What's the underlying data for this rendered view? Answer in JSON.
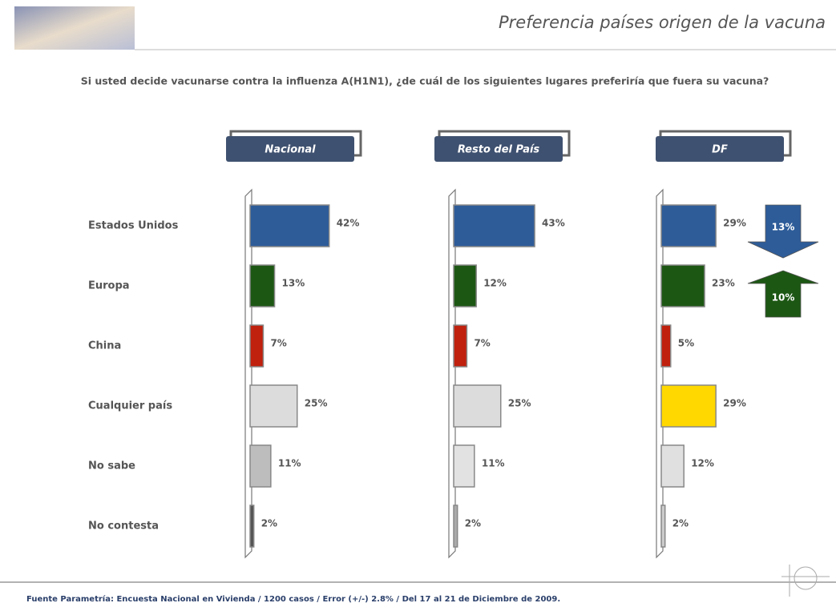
{
  "title": "Preferencia países origen de la vacuna",
  "question": "Si usted decide vacunarse contra la influenza A(H1N1), ¿de cuál de los siguientes lugares preferiría que fuera su vacuna?",
  "footer": "Fuente Parametría: Encuesta Nacional en Vivienda / 1200 casos / Error (+/-) 2.8% / Del 17 al 21 de Diciembre de 2009.",
  "chart_data": [
    {
      "type": "bar",
      "title": "Nacional",
      "categories": [
        "Estados Unidos",
        "Europa",
        "China",
        "Cualquier país",
        "No sabe",
        "No contesta"
      ],
      "values": [
        42,
        13,
        7,
        25,
        11,
        2
      ],
      "value_labels": [
        "42%",
        "13%",
        "7%",
        "25%",
        "11%",
        "2%"
      ],
      "colors": [
        "#2e5c99",
        "#1d5714",
        "#c0200e",
        "#dcdcdc",
        "#bdbdbd",
        "#555555"
      ]
    },
    {
      "type": "bar",
      "title": "Resto del País",
      "values": [
        43,
        12,
        7,
        25,
        11,
        2
      ],
      "value_labels": [
        "43%",
        "12%",
        "7%",
        "25%",
        "11%",
        "2%"
      ],
      "colors": [
        "#2e5c99",
        "#1d5714",
        "#c0200e",
        "#dcdcdc",
        "#e2e2e2",
        "#aaaaaa"
      ]
    },
    {
      "type": "bar",
      "title": "DF",
      "values": [
        29,
        23,
        5,
        29,
        12,
        2
      ],
      "value_labels": [
        "29%",
        "23%",
        "5%",
        "29%",
        "12%",
        "2%"
      ],
      "colors": [
        "#2e5c99",
        "#1d5714",
        "#c0200e",
        "#ffd800",
        "#e0e0e0",
        "#cccccc"
      ],
      "annotations": [
        {
          "value": 13,
          "label": "13%",
          "direction": "down",
          "color": "#2e5c99"
        },
        {
          "value": 10,
          "label": "10%",
          "direction": "up",
          "color": "#1d5714"
        }
      ]
    }
  ]
}
